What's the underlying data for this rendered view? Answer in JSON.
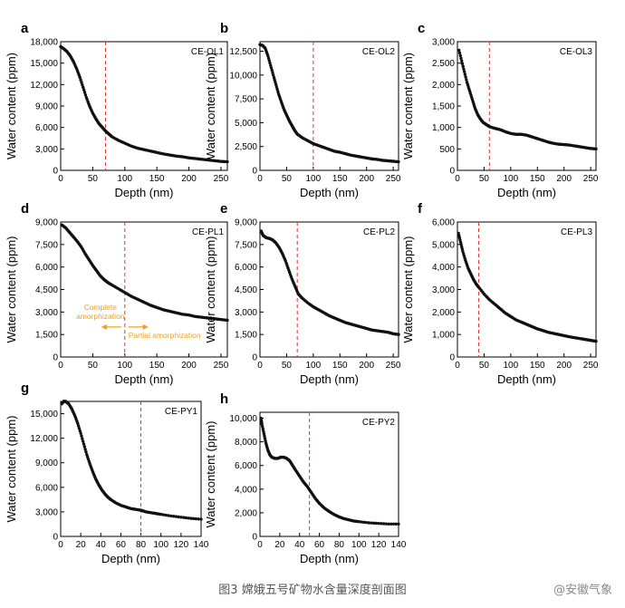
{
  "caption": "图3 嫦娥五号矿物水含量深度剖面图",
  "watermark": "@安徽气象",
  "colors": {
    "marker": "#111111",
    "refline": "#e53030",
    "annotation": "#f0a020",
    "axis": "#000000"
  },
  "chart_data": [
    {
      "type": "scatter",
      "panel": "a",
      "label": "CE-OL1",
      "xlabel": "Depth (nm)",
      "ylabel": "Water content (ppm)",
      "xlim": [
        0,
        260
      ],
      "ylim": [
        0,
        18000
      ],
      "xticks": [
        0,
        50,
        100,
        150,
        200,
        250
      ],
      "xtick_labels": [
        "0",
        "50",
        "100",
        "150",
        "200",
        "250"
      ],
      "yticks": [
        0,
        3000,
        6000,
        9000,
        12000,
        15000,
        18000
      ],
      "ytick_labels": [
        "0",
        "3,000",
        "6,000",
        "9,000",
        "12,000",
        "15,000",
        "18,000"
      ],
      "refline_x": 70,
      "points": [
        [
          0,
          17300
        ],
        [
          5,
          17000
        ],
        [
          10,
          16600
        ],
        [
          15,
          16000
        ],
        [
          20,
          15200
        ],
        [
          25,
          14200
        ],
        [
          30,
          13000
        ],
        [
          35,
          11600
        ],
        [
          40,
          10200
        ],
        [
          45,
          9000
        ],
        [
          50,
          8000
        ],
        [
          55,
          7200
        ],
        [
          60,
          6500
        ],
        [
          65,
          6000
        ],
        [
          70,
          5500
        ],
        [
          75,
          5100
        ],
        [
          80,
          4700
        ],
        [
          90,
          4200
        ],
        [
          100,
          3800
        ],
        [
          110,
          3400
        ],
        [
          120,
          3100
        ],
        [
          130,
          2900
        ],
        [
          140,
          2700
        ],
        [
          150,
          2500
        ],
        [
          160,
          2300
        ],
        [
          170,
          2150
        ],
        [
          180,
          2000
        ],
        [
          190,
          1900
        ],
        [
          200,
          1750
        ],
        [
          210,
          1650
        ],
        [
          220,
          1550
        ],
        [
          230,
          1450
        ],
        [
          240,
          1350
        ],
        [
          250,
          1250
        ],
        [
          260,
          1200
        ]
      ]
    },
    {
      "type": "scatter",
      "panel": "b",
      "label": "CE-OL2",
      "xlabel": "Depth (nm)",
      "ylabel": "Water content (ppm)",
      "xlim": [
        0,
        260
      ],
      "ylim": [
        0,
        13500
      ],
      "xticks": [
        0,
        50,
        100,
        150,
        200,
        250
      ],
      "xtick_labels": [
        "0",
        "50",
        "100",
        "150",
        "200",
        "250"
      ],
      "yticks": [
        0,
        2500,
        5000,
        7500,
        10000,
        12500
      ],
      "ytick_labels": [
        "0",
        "2,500",
        "5,000",
        "7,500",
        "10,000",
        "12,500"
      ],
      "refline_x": 100,
      "points": [
        [
          0,
          13200
        ],
        [
          5,
          13100
        ],
        [
          10,
          12800
        ],
        [
          15,
          12000
        ],
        [
          20,
          11000
        ],
        [
          25,
          10000
        ],
        [
          30,
          9000
        ],
        [
          35,
          8000
        ],
        [
          40,
          7200
        ],
        [
          45,
          6400
        ],
        [
          50,
          5800
        ],
        [
          55,
          5200
        ],
        [
          60,
          4700
        ],
        [
          65,
          4200
        ],
        [
          70,
          3800
        ],
        [
          80,
          3400
        ],
        [
          90,
          3100
        ],
        [
          100,
          2800
        ],
        [
          110,
          2600
        ],
        [
          120,
          2400
        ],
        [
          130,
          2200
        ],
        [
          140,
          2000
        ],
        [
          150,
          1900
        ],
        [
          160,
          1750
        ],
        [
          170,
          1600
        ],
        [
          180,
          1500
        ],
        [
          190,
          1400
        ],
        [
          200,
          1300
        ],
        [
          210,
          1200
        ],
        [
          220,
          1150
        ],
        [
          230,
          1050
        ],
        [
          240,
          1000
        ],
        [
          250,
          950
        ],
        [
          260,
          900
        ]
      ]
    },
    {
      "type": "scatter",
      "panel": "c",
      "label": "CE-OL3",
      "xlabel": "Depth (nm)",
      "ylabel": "Water content (ppm)",
      "xlim": [
        0,
        260
      ],
      "ylim": [
        0,
        3000
      ],
      "xticks": [
        0,
        50,
        100,
        150,
        200,
        250
      ],
      "xtick_labels": [
        "0",
        "50",
        "100",
        "150",
        "200",
        "250"
      ],
      "yticks": [
        0,
        500,
        1000,
        1500,
        2000,
        2500,
        3000
      ],
      "ytick_labels": [
        "0",
        "500",
        "1,000",
        "1,500",
        "2,000",
        "2,500",
        "3,000"
      ],
      "refline_x": 60,
      "points": [
        [
          3,
          2800
        ],
        [
          8,
          2550
        ],
        [
          13,
          2300
        ],
        [
          18,
          2050
        ],
        [
          23,
          1850
        ],
        [
          28,
          1650
        ],
        [
          33,
          1450
        ],
        [
          38,
          1300
        ],
        [
          43,
          1200
        ],
        [
          48,
          1120
        ],
        [
          55,
          1060
        ],
        [
          60,
          1020
        ],
        [
          70,
          980
        ],
        [
          80,
          950
        ],
        [
          90,
          900
        ],
        [
          100,
          860
        ],
        [
          110,
          840
        ],
        [
          120,
          840
        ],
        [
          130,
          820
        ],
        [
          140,
          780
        ],
        [
          150,
          740
        ],
        [
          160,
          700
        ],
        [
          170,
          660
        ],
        [
          180,
          630
        ],
        [
          190,
          610
        ],
        [
          200,
          600
        ],
        [
          210,
          590
        ],
        [
          220,
          570
        ],
        [
          230,
          550
        ],
        [
          240,
          530
        ],
        [
          250,
          510
        ],
        [
          260,
          500
        ]
      ]
    },
    {
      "type": "scatter",
      "panel": "d",
      "label": "CE-PL1",
      "xlabel": "Depth (nm)",
      "ylabel": "Water content (ppm)",
      "xlim": [
        0,
        260
      ],
      "ylim": [
        0,
        9000
      ],
      "xticks": [
        0,
        50,
        100,
        150,
        200,
        250
      ],
      "xtick_labels": [
        "0",
        "50",
        "100",
        "150",
        "200",
        "250"
      ],
      "yticks": [
        0,
        1500,
        3000,
        4500,
        6000,
        7500,
        9000
      ],
      "ytick_labels": [
        "0",
        "1,500",
        "3,000",
        "4,500",
        "6,000",
        "7,500",
        "9,000"
      ],
      "refline_x": 100,
      "annotations": {
        "left": [
          "Complete",
          "amorphization"
        ],
        "right": "Partial amorphization"
      },
      "points": [
        [
          2,
          8800
        ],
        [
          8,
          8600
        ],
        [
          14,
          8300
        ],
        [
          20,
          8000
        ],
        [
          26,
          7700
        ],
        [
          32,
          7350
        ],
        [
          38,
          6900
        ],
        [
          44,
          6500
        ],
        [
          50,
          6100
        ],
        [
          56,
          5750
        ],
        [
          62,
          5400
        ],
        [
          68,
          5150
        ],
        [
          74,
          4950
        ],
        [
          80,
          4800
        ],
        [
          90,
          4550
        ],
        [
          100,
          4300
        ],
        [
          110,
          4050
        ],
        [
          120,
          3850
        ],
        [
          130,
          3650
        ],
        [
          140,
          3450
        ],
        [
          150,
          3300
        ],
        [
          160,
          3150
        ],
        [
          170,
          3050
        ],
        [
          180,
          2950
        ],
        [
          190,
          2850
        ],
        [
          200,
          2800
        ],
        [
          210,
          2700
        ],
        [
          220,
          2650
        ],
        [
          230,
          2600
        ],
        [
          240,
          2550
        ],
        [
          250,
          2500
        ],
        [
          260,
          2450
        ]
      ]
    },
    {
      "type": "scatter",
      "panel": "e",
      "label": "CE-PL2",
      "xlabel": "Depth (nm)",
      "ylabel": "Water content (ppm)",
      "xlim": [
        0,
        260
      ],
      "ylim": [
        0,
        9000
      ],
      "xticks": [
        0,
        50,
        100,
        150,
        200,
        250
      ],
      "xtick_labels": [
        "0",
        "50",
        "100",
        "150",
        "200",
        "250"
      ],
      "yticks": [
        0,
        1500,
        3000,
        4500,
        6000,
        7500,
        9000
      ],
      "ytick_labels": [
        "0",
        "1,500",
        "3,000",
        "4,500",
        "6,000",
        "7,500",
        "9,000"
      ],
      "refline_x": 70,
      "points": [
        [
          2,
          8400
        ],
        [
          6,
          8100
        ],
        [
          12,
          7950
        ],
        [
          18,
          7900
        ],
        [
          24,
          7800
        ],
        [
          30,
          7600
        ],
        [
          36,
          7300
        ],
        [
          42,
          6900
        ],
        [
          48,
          6400
        ],
        [
          54,
          5800
        ],
        [
          60,
          5200
        ],
        [
          66,
          4700
        ],
        [
          72,
          4200
        ],
        [
          80,
          3900
        ],
        [
          90,
          3600
        ],
        [
          100,
          3350
        ],
        [
          110,
          3150
        ],
        [
          120,
          2950
        ],
        [
          130,
          2750
        ],
        [
          140,
          2600
        ],
        [
          150,
          2450
        ],
        [
          160,
          2300
        ],
        [
          170,
          2200
        ],
        [
          180,
          2100
        ],
        [
          190,
          2000
        ],
        [
          200,
          1900
        ],
        [
          210,
          1800
        ],
        [
          220,
          1750
        ],
        [
          230,
          1700
        ],
        [
          240,
          1650
        ],
        [
          250,
          1550
        ],
        [
          260,
          1500
        ]
      ]
    },
    {
      "type": "scatter",
      "panel": "f",
      "label": "CE-PL3",
      "xlabel": "Depth (nm)",
      "ylabel": "Water content (ppm)",
      "xlim": [
        0,
        260
      ],
      "ylim": [
        0,
        6000
      ],
      "xticks": [
        0,
        50,
        100,
        150,
        200,
        250
      ],
      "xtick_labels": [
        "0",
        "50",
        "100",
        "150",
        "200",
        "250"
      ],
      "yticks": [
        0,
        1000,
        2000,
        3000,
        4000,
        5000,
        6000
      ],
      "ytick_labels": [
        "0",
        "1,000",
        "2,000",
        "3,000",
        "4,000",
        "5,000",
        "6,000"
      ],
      "refline_x": 40,
      "points": [
        [
          2,
          5500
        ],
        [
          6,
          5100
        ],
        [
          10,
          4700
        ],
        [
          15,
          4300
        ],
        [
          20,
          3950
        ],
        [
          25,
          3700
        ],
        [
          30,
          3450
        ],
        [
          35,
          3250
        ],
        [
          40,
          3100
        ],
        [
          50,
          2800
        ],
        [
          60,
          2550
        ],
        [
          70,
          2350
        ],
        [
          80,
          2150
        ],
        [
          90,
          1950
        ],
        [
          100,
          1800
        ],
        [
          110,
          1650
        ],
        [
          120,
          1550
        ],
        [
          130,
          1450
        ],
        [
          140,
          1350
        ],
        [
          150,
          1250
        ],
        [
          160,
          1180
        ],
        [
          170,
          1100
        ],
        [
          180,
          1050
        ],
        [
          190,
          1000
        ],
        [
          200,
          950
        ],
        [
          210,
          900
        ],
        [
          220,
          860
        ],
        [
          230,
          820
        ],
        [
          240,
          780
        ],
        [
          250,
          740
        ],
        [
          260,
          700
        ]
      ]
    },
    {
      "type": "scatter",
      "panel": "g",
      "label": "CE-PY1",
      "xlabel": "Depth (nm)",
      "ylabel": "Water content (ppm)",
      "xlim": [
        0,
        140
      ],
      "ylim": [
        0,
        16500
      ],
      "xticks": [
        0,
        20,
        40,
        60,
        80,
        100,
        120,
        140
      ],
      "xtick_labels": [
        "0",
        "20",
        "40",
        "60",
        "80",
        "100",
        "120",
        "140"
      ],
      "yticks": [
        0,
        3000,
        6000,
        9000,
        12000,
        15000
      ],
      "ytick_labels": [
        "0",
        "3,000",
        "6,000",
        "9,000",
        "12,000",
        "15,000"
      ],
      "refline_x": 80,
      "points": [
        [
          1,
          16200
        ],
        [
          3,
          16500
        ],
        [
          5,
          16500
        ],
        [
          8,
          16200
        ],
        [
          11,
          15600
        ],
        [
          14,
          14800
        ],
        [
          17,
          13800
        ],
        [
          20,
          12600
        ],
        [
          23,
          11300
        ],
        [
          26,
          10000
        ],
        [
          29,
          8900
        ],
        [
          32,
          7900
        ],
        [
          35,
          7000
        ],
        [
          38,
          6300
        ],
        [
          41,
          5700
        ],
        [
          44,
          5200
        ],
        [
          47,
          4800
        ],
        [
          50,
          4500
        ],
        [
          55,
          4100
        ],
        [
          60,
          3800
        ],
        [
          65,
          3600
        ],
        [
          70,
          3400
        ],
        [
          75,
          3300
        ],
        [
          80,
          3200
        ],
        [
          85,
          3000
        ],
        [
          90,
          2900
        ],
        [
          95,
          2800
        ],
        [
          100,
          2700
        ],
        [
          110,
          2500
        ],
        [
          120,
          2350
        ],
        [
          130,
          2200
        ],
        [
          140,
          2100
        ]
      ]
    },
    {
      "type": "scatter",
      "panel": "h",
      "label": "CE-PY2",
      "xlabel": "Depth (nm)",
      "ylabel": "Water content (ppm)",
      "xlim": [
        0,
        140
      ],
      "ylim": [
        0,
        10500
      ],
      "xticks": [
        0,
        20,
        40,
        60,
        80,
        100,
        120,
        140
      ],
      "xtick_labels": [
        "0",
        "20",
        "40",
        "60",
        "80",
        "100",
        "120",
        "140"
      ],
      "yticks": [
        0,
        2000,
        4000,
        6000,
        8000,
        10000
      ],
      "ytick_labels": [
        "0",
        "2,000",
        "4,000",
        "6,000",
        "8,000",
        "10,000"
      ],
      "refline_x": 50,
      "points": [
        [
          1,
          10000
        ],
        [
          2,
          9500
        ],
        [
          4,
          8700
        ],
        [
          6,
          7900
        ],
        [
          8,
          7300
        ],
        [
          10,
          6900
        ],
        [
          12,
          6700
        ],
        [
          15,
          6600
        ],
        [
          18,
          6600
        ],
        [
          21,
          6700
        ],
        [
          24,
          6700
        ],
        [
          27,
          6600
        ],
        [
          30,
          6400
        ],
        [
          33,
          6000
        ],
        [
          36,
          5600
        ],
        [
          40,
          5100
        ],
        [
          44,
          4600
        ],
        [
          48,
          4200
        ],
        [
          52,
          3700
        ],
        [
          56,
          3200
        ],
        [
          60,
          2800
        ],
        [
          65,
          2400
        ],
        [
          70,
          2100
        ],
        [
          75,
          1850
        ],
        [
          80,
          1650
        ],
        [
          85,
          1500
        ],
        [
          90,
          1400
        ],
        [
          95,
          1300
        ],
        [
          100,
          1250
        ],
        [
          110,
          1150
        ],
        [
          120,
          1100
        ],
        [
          130,
          1050
        ],
        [
          140,
          1050
        ]
      ]
    }
  ]
}
